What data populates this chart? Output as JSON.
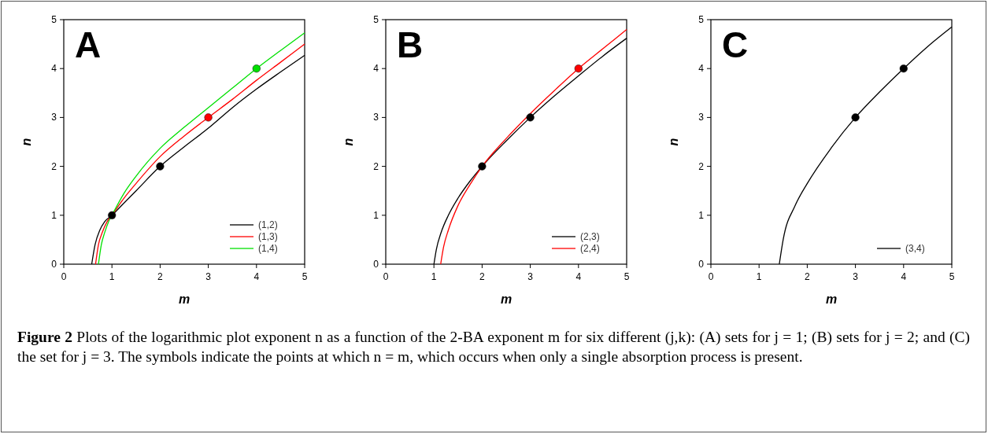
{
  "chart_data": [
    {
      "type": "line",
      "title": "A",
      "xlabel": "m",
      "ylabel": "n",
      "xlim": [
        0,
        5
      ],
      "ylim": [
        0,
        5
      ],
      "xticks": [
        0,
        1,
        2,
        3,
        4,
        5
      ],
      "yticks": [
        0,
        1,
        2,
        3,
        4,
        5
      ],
      "grid": false,
      "legend": "bottom right",
      "series": [
        {
          "name": "(1,2)",
          "color": "#000000",
          "x": [
            0.58,
            0.65,
            0.75,
            0.85,
            1,
            1.25,
            1.5,
            2,
            2.5,
            3,
            3.5,
            4,
            4.5,
            5
          ],
          "values": [
            0,
            0.4,
            0.7,
            0.87,
            1,
            1.25,
            1.5,
            2,
            2.4,
            2.78,
            3.2,
            3.58,
            3.93,
            4.27
          ]
        },
        {
          "name": "(1,3)",
          "color": "#ff0000",
          "x": [
            0.66,
            0.72,
            0.8,
            0.9,
            1,
            1.25,
            1.5,
            2,
            2.5,
            3,
            3.5,
            4,
            4.5,
            5
          ],
          "values": [
            0,
            0.4,
            0.65,
            0.87,
            1,
            1.35,
            1.65,
            2.2,
            2.62,
            3,
            3.37,
            3.76,
            4.13,
            4.5
          ]
        },
        {
          "name": "(1,4)",
          "color": "#00e000",
          "x": [
            0.72,
            0.78,
            0.85,
            0.93,
            1,
            1.25,
            1.5,
            2,
            2.5,
            3,
            3.5,
            4,
            4.5,
            5
          ],
          "values": [
            0,
            0.4,
            0.65,
            0.87,
            1,
            1.45,
            1.8,
            2.37,
            2.8,
            3.2,
            3.6,
            4,
            4.37,
            4.73
          ]
        },
        {
          "type": "scatter",
          "marker": "circle",
          "color": "#000000",
          "x": [
            1,
            2
          ],
          "values": [
            1,
            2
          ]
        },
        {
          "type": "scatter",
          "marker": "circle",
          "color": "#ff0000",
          "x": [
            3
          ],
          "values": [
            3
          ]
        },
        {
          "type": "scatter",
          "marker": "circle",
          "color": "#00e000",
          "x": [
            4
          ],
          "values": [
            4
          ]
        }
      ],
      "annotations": [
        "Figure 2",
        "Plots of the logarithmic plot exponent n as a function of the 2-BA exponent m for six different (j,k): (A) sets for j = 1; (B) sets for j = 2; and (C) the set for j = 3. The symbols indicate the points at which n = m, which occurs when only a single absorption process is present."
      ]
    },
    {
      "type": "line",
      "title": "B",
      "xlabel": "m",
      "ylabel": "n",
      "xlim": [
        0,
        5
      ],
      "ylim": [
        0,
        5
      ],
      "xticks": [
        0,
        1,
        2,
        3,
        4,
        5
      ],
      "yticks": [
        0,
        1,
        2,
        3,
        4,
        5
      ],
      "grid": false,
      "legend": "bottom right",
      "series": [
        {
          "name": "(2,3)",
          "color": "#000000",
          "x": [
            1,
            1.05,
            1.15,
            1.3,
            1.5,
            1.75,
            2,
            2.5,
            3,
            3.5,
            4,
            4.5,
            5
          ],
          "values": [
            0,
            0.3,
            0.65,
            1,
            1.35,
            1.7,
            2,
            2.52,
            3,
            3.44,
            3.85,
            4.25,
            4.62
          ]
        },
        {
          "name": "(2,4)",
          "color": "#ff0000",
          "x": [
            1.14,
            1.2,
            1.3,
            1.5,
            1.75,
            2,
            2.5,
            3,
            3.5,
            4,
            4.5,
            5
          ],
          "values": [
            0,
            0.35,
            0.7,
            1.2,
            1.63,
            2,
            2.57,
            3.08,
            3.55,
            4,
            4.4,
            4.8
          ]
        },
        {
          "type": "scatter",
          "marker": "circle",
          "color": "#000000",
          "x": [
            2,
            3
          ],
          "values": [
            2,
            3
          ]
        },
        {
          "type": "scatter",
          "marker": "circle",
          "color": "#ff0000",
          "x": [
            4
          ],
          "values": [
            4
          ]
        }
      ]
    },
    {
      "type": "line",
      "title": "C",
      "xlabel": "m",
      "ylabel": "n",
      "xlim": [
        0,
        5
      ],
      "ylim": [
        0,
        5
      ],
      "xticks": [
        0,
        1,
        2,
        3,
        4,
        5
      ],
      "yticks": [
        0,
        1,
        2,
        3,
        4,
        5
      ],
      "grid": false,
      "legend": "bottom right",
      "series": [
        {
          "name": "(3,4)",
          "color": "#000000",
          "x": [
            1.42,
            1.5,
            1.75,
            2,
            2.5,
            3,
            3.5,
            4,
            4.5,
            5
          ],
          "values": [
            0,
            0.5,
            1.2,
            1.65,
            2.38,
            3,
            3.52,
            4,
            4.45,
            4.85
          ]
        },
        {
          "type": "scatter",
          "marker": "circle",
          "color": "#000000",
          "x": [
            3,
            4
          ],
          "values": [
            3,
            4
          ]
        }
      ]
    }
  ]
}
